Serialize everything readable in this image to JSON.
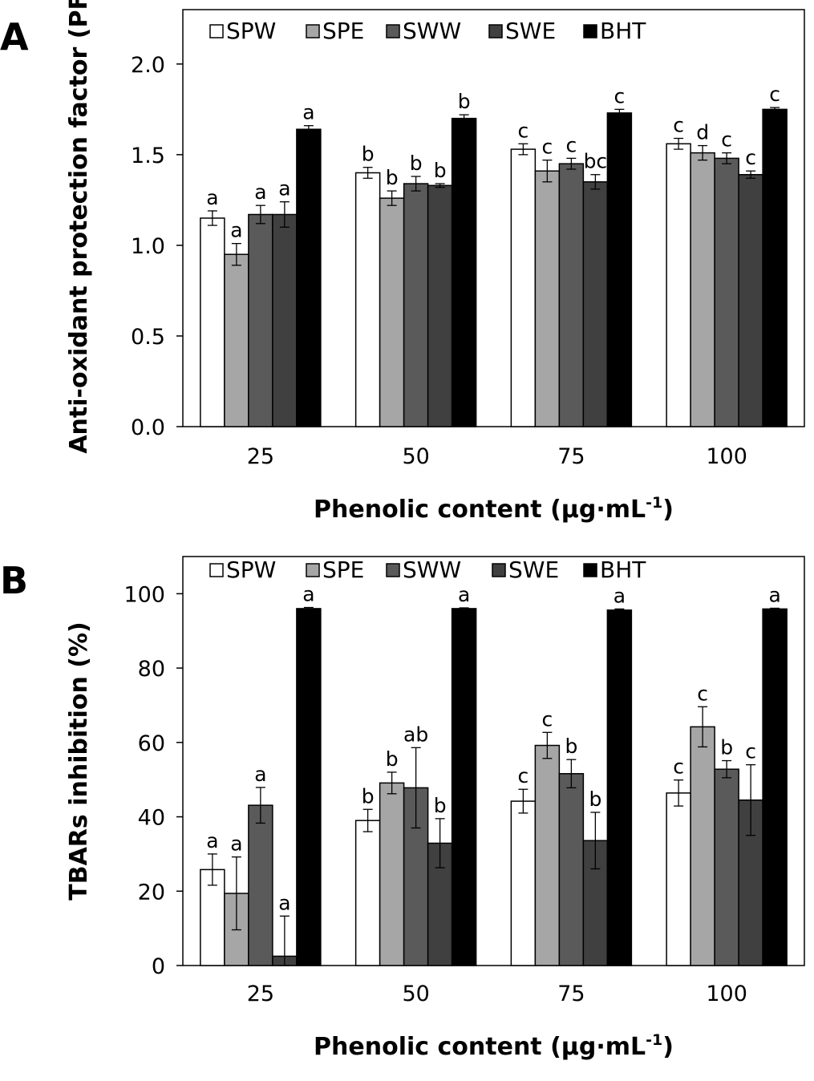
{
  "chart_data": [
    {
      "panel": "A",
      "type": "bar",
      "categories": [
        "25",
        "50",
        "75",
        "100"
      ],
      "xlabel": "Phenolic content (μg·mL",
      "xlabel_sup": "-1",
      "xlabel_close": ")",
      "ylabel": "Anti-oxidant protection factor (PF)",
      "ylim": [
        0,
        2.3
      ],
      "yticks": [
        "0.0",
        "0.5",
        "1.0",
        "1.5",
        "2.0"
      ],
      "ytick_values": [
        0,
        0.5,
        1.0,
        1.5,
        2.0
      ],
      "legend_position": "top-left",
      "series": [
        {
          "name": "SPW",
          "color": "#ffffff",
          "values": [
            1.15,
            1.4,
            1.53,
            1.56
          ],
          "errors": [
            0.04,
            0.03,
            0.03,
            0.03
          ],
          "labels": [
            "a",
            "b",
            "c",
            "c"
          ]
        },
        {
          "name": "SPE",
          "color": "#a6a6a6",
          "values": [
            0.95,
            1.26,
            1.41,
            1.51
          ],
          "errors": [
            0.06,
            0.04,
            0.06,
            0.04
          ],
          "labels": [
            "a",
            "b",
            "c",
            "d"
          ]
        },
        {
          "name": "SWW",
          "color": "#5a5a5a",
          "values": [
            1.17,
            1.34,
            1.45,
            1.48
          ],
          "errors": [
            0.05,
            0.04,
            0.03,
            0.03
          ],
          "labels": [
            "a",
            "b",
            "c",
            "c"
          ]
        },
        {
          "name": "SWE",
          "color": "#404040",
          "values": [
            1.17,
            1.33,
            1.35,
            1.39
          ],
          "errors": [
            0.07,
            0.01,
            0.04,
            0.02
          ],
          "labels": [
            "a",
            "b",
            "bc",
            "c"
          ]
        },
        {
          "name": "BHT",
          "color": "#000000",
          "values": [
            1.64,
            1.7,
            1.73,
            1.75
          ],
          "errors": [
            0.02,
            0.02,
            0.02,
            0.01
          ],
          "labels": [
            "a",
            "b",
            "c",
            "c"
          ]
        }
      ]
    },
    {
      "panel": "B",
      "type": "bar",
      "categories": [
        "25",
        "50",
        "75",
        "100"
      ],
      "xlabel": "Phenolic content (μg·mL",
      "xlabel_sup": "-1",
      "xlabel_close": ")",
      "ylabel": "TBARs inhibition (%)",
      "ylim": [
        0,
        110
      ],
      "yticks": [
        "0",
        "20",
        "40",
        "60",
        "80",
        "100"
      ],
      "ytick_values": [
        0,
        20,
        40,
        60,
        80,
        100
      ],
      "legend_position": "top-left",
      "series": [
        {
          "name": "SPW",
          "color": "#ffffff",
          "values": [
            25.8,
            39.0,
            44.2,
            46.4
          ],
          "errors": [
            4.2,
            3.0,
            3.2,
            3.5
          ],
          "labels": [
            "a",
            "b",
            "c",
            "c"
          ]
        },
        {
          "name": "SPE",
          "color": "#a6a6a6",
          "values": [
            19.4,
            49.1,
            59.2,
            64.2
          ],
          "errors": [
            9.8,
            2.9,
            3.5,
            5.4
          ],
          "labels": [
            "a",
            "b",
            "c",
            "c"
          ]
        },
        {
          "name": "SWW",
          "color": "#5a5a5a",
          "values": [
            43.1,
            47.8,
            51.6,
            52.8
          ],
          "errors": [
            4.8,
            10.8,
            3.8,
            2.3
          ],
          "labels": [
            "a",
            "ab",
            "b",
            "b"
          ]
        },
        {
          "name": "SWE",
          "color": "#404040",
          "values": [
            2.5,
            32.9,
            33.6,
            44.5
          ],
          "errors": [
            10.8,
            6.6,
            7.6,
            9.5
          ],
          "labels": [
            "a",
            "b",
            "b",
            "c"
          ]
        },
        {
          "name": "BHT",
          "color": "#000000",
          "values": [
            96.0,
            96.0,
            95.6,
            95.9
          ],
          "errors": [
            0.3,
            0.2,
            0.3,
            0.2
          ],
          "labels": [
            "a",
            "a",
            "a",
            "a"
          ]
        }
      ]
    }
  ]
}
